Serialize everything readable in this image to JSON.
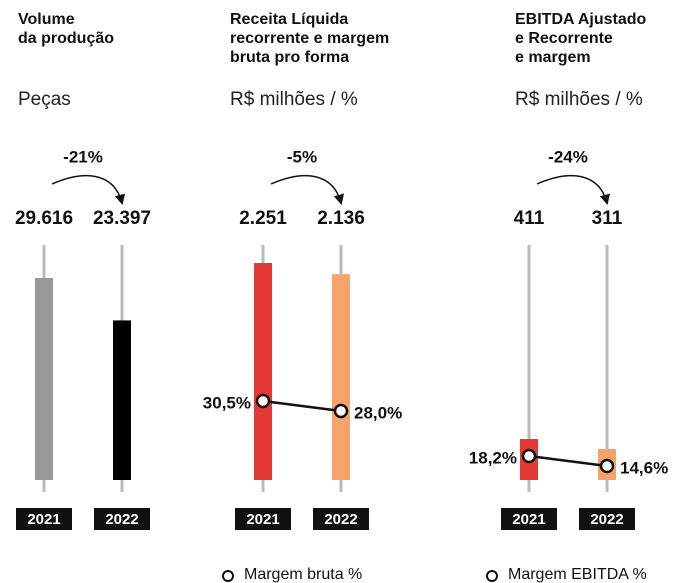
{
  "chart_data": [
    {
      "type": "bar",
      "title": "Volume\nda produção",
      "subtitle": "Peças",
      "categories": [
        "2021",
        "2022"
      ],
      "values": [
        29616,
        23397
      ],
      "value_labels": [
        "29.616",
        "23.397"
      ],
      "colors": [
        "#999999",
        "#000000"
      ],
      "change_label": "-21%"
    },
    {
      "type": "bar",
      "title": "Receita Líquida\nrecorrente e margem\nbruta pro forma",
      "subtitle": "R$ milhões / %",
      "categories": [
        "2021",
        "2022"
      ],
      "values": [
        2251,
        2136
      ],
      "value_labels": [
        "2.251",
        "2.136"
      ],
      "colors": [
        "#e53935",
        "#f4a46a"
      ],
      "change_label": "-5%",
      "series": [
        {
          "name": "Margem bruta %",
          "values": [
            30.5,
            28.0
          ],
          "value_labels": [
            "30,5%",
            "28,0%"
          ]
        }
      ]
    },
    {
      "type": "bar",
      "title": "EBITDA Ajustado\ne Recorrente\ne margem",
      "subtitle": "R$ milhões / %",
      "categories": [
        "2021",
        "2022"
      ],
      "values": [
        411,
        311
      ],
      "value_labels": [
        "411",
        "311"
      ],
      "colors": [
        "#e53935",
        "#f4a46a"
      ],
      "change_label": "-24%",
      "series": [
        {
          "name": "Margem EBITDA %",
          "values": [
            18.2,
            14.6
          ],
          "value_labels": [
            "18,2%",
            "14,6%"
          ]
        }
      ]
    }
  ]
}
